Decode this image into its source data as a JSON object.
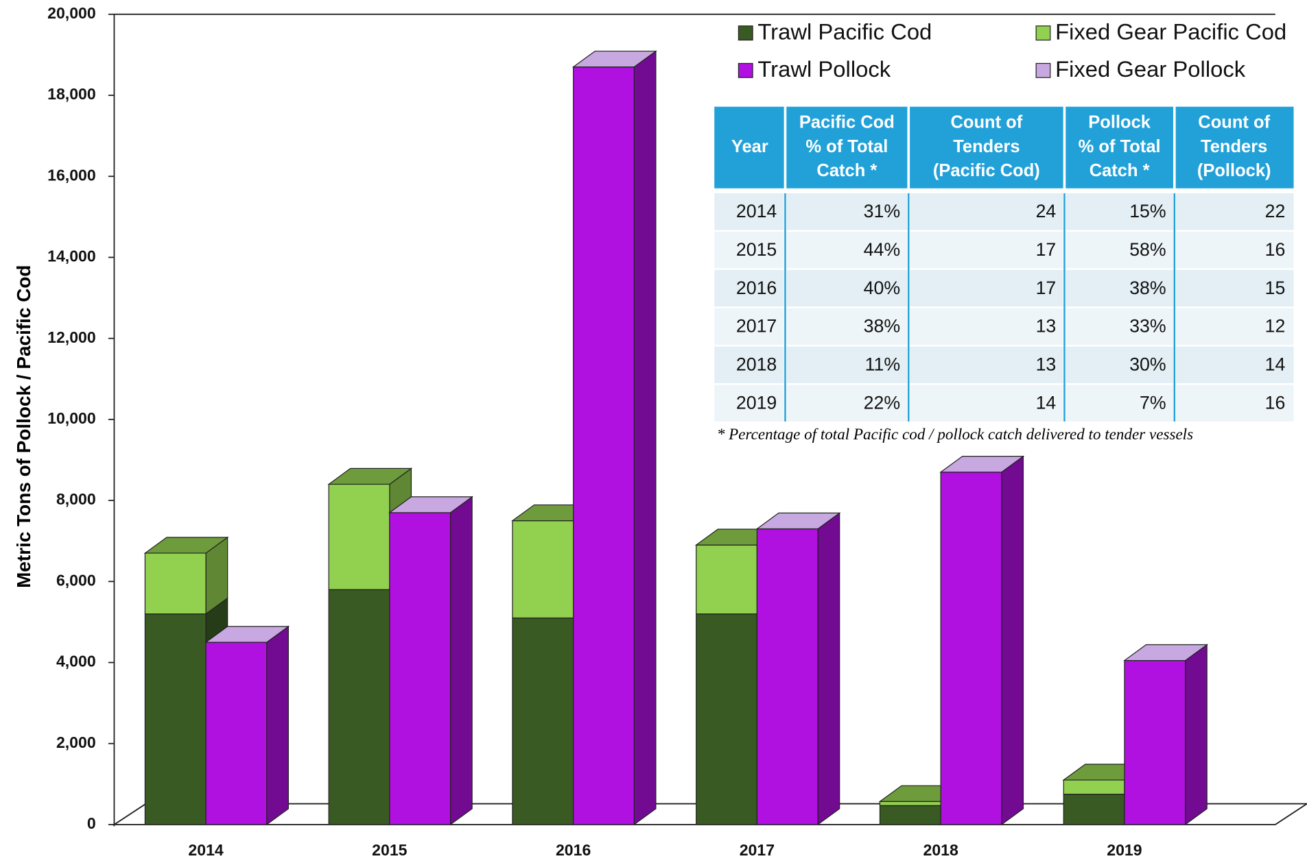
{
  "chart_data": {
    "type": "bar",
    "y_axis_label": "Metric Tons of Pollock / Pacific Cod",
    "categories": [
      "2014",
      "2015",
      "2016",
      "2017",
      "2018",
      "2019"
    ],
    "series": [
      {
        "name": "Trawl Pacific Cod",
        "color": "#3a5a24",
        "stack": "cod",
        "values": [
          5200,
          5800,
          5100,
          5200,
          470,
          750
        ]
      },
      {
        "name": "Fixed Gear Pacific Cod",
        "color": "#92d050",
        "stack": "cod",
        "values": [
          1500,
          2600,
          2400,
          1700,
          100,
          350
        ]
      },
      {
        "name": "Trawl Pollock",
        "color": "#b010e0",
        "stack": "pollock",
        "values": [
          4500,
          7700,
          18700,
          7300,
          8700,
          4050
        ]
      },
      {
        "name": "Fixed Gear Pollock",
        "color": "#c7a8e0",
        "stack": "pollock",
        "values": [
          0,
          0,
          0,
          0,
          0,
          0
        ]
      }
    ],
    "ylim": [
      0,
      20000
    ],
    "yticks": [
      0,
      {
        "value": 2000,
        "label": "2,000"
      },
      {
        "value": 4000,
        "label": "4,000"
      },
      {
        "value": 6000,
        "label": "6,000"
      },
      {
        "value": 8000,
        "label": "8,000"
      },
      {
        "value": 10000,
        "label": "10,000"
      },
      {
        "value": 12000,
        "label": "12,000"
      },
      {
        "value": 14000,
        "label": "14,000"
      },
      {
        "value": 16000,
        "label": "16,000"
      },
      {
        "value": 18000,
        "label": "18,000"
      },
      {
        "value": 20000,
        "label": "20,000"
      }
    ]
  },
  "table": {
    "header": [
      [
        "Year"
      ],
      [
        "Pacific Cod",
        "% of Total",
        "Catch *"
      ],
      [
        "Count of",
        "Tenders",
        "(Pacific Cod)"
      ],
      [
        "Pollock",
        "% of Total",
        "Catch *"
      ],
      [
        "Count of",
        "Tenders",
        "(Pollock)"
      ]
    ],
    "rows": [
      [
        "2014",
        "31%",
        "24",
        "15%",
        "22"
      ],
      [
        "2015",
        "44%",
        "17",
        "58%",
        "16"
      ],
      [
        "2016",
        "40%",
        "17",
        "38%",
        "15"
      ],
      [
        "2017",
        "38%",
        "13",
        "33%",
        "12"
      ],
      [
        "2018",
        "11%",
        "13",
        "30%",
        "14"
      ],
      [
        "2019",
        "22%",
        "14",
        "7%",
        "16"
      ]
    ],
    "note": "* Percentage of  total Pacific cod / pollock catch delivered to tender vessels"
  }
}
